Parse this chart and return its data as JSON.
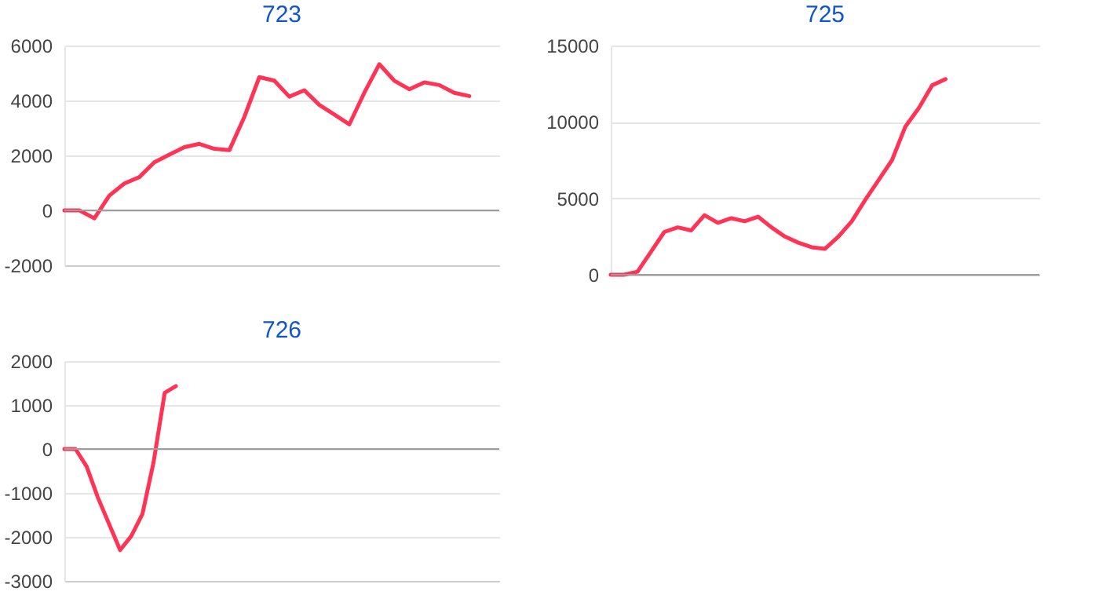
{
  "chart_data": [
    {
      "type": "line",
      "title": "723",
      "categories": [
        null,
        null,
        null,
        null,
        null,
        null,
        null,
        null,
        null,
        null,
        null,
        null,
        null,
        null,
        null,
        null,
        null,
        null,
        null,
        null,
        null,
        null,
        null,
        null,
        null,
        null,
        null,
        null,
        null,
        null
      ],
      "values": [
        0,
        0,
        -290,
        540,
        980,
        1210,
        1750,
        2030,
        2300,
        2420,
        2240,
        2190,
        3400,
        4850,
        4720,
        4140,
        4370,
        3840,
        3490,
        3130,
        4280,
        5320,
        4720,
        4410,
        4660,
        4560,
        4280,
        4160,
        null,
        null
      ],
      "color": "#ff3355",
      "ylim": [
        -2000,
        6000
      ],
      "yticks": [
        -2000,
        0,
        2000,
        4000,
        6000
      ],
      "grid": "y",
      "tick_labels": "y",
      "ref_lines": [
        {
          "axis": "y",
          "value": 0,
          "color": "#9e9e9e"
        }
      ]
    },
    {
      "type": "line",
      "title": "725",
      "categories": [
        null,
        null,
        null,
        null,
        null,
        null,
        null,
        null,
        null,
        null,
        null,
        null,
        null,
        null,
        null,
        null,
        null,
        null,
        null,
        null,
        null,
        null,
        null,
        null,
        null,
        null,
        null,
        null,
        null,
        null,
        null,
        null,
        null
      ],
      "values": [
        0,
        0,
        200,
        1500,
        2800,
        3100,
        2900,
        3900,
        3400,
        3700,
        3500,
        3800,
        3100,
        2500,
        2100,
        1800,
        1700,
        2500,
        3500,
        4900,
        6200,
        7500,
        9700,
        10900,
        12400,
        12800,
        null,
        null,
        null,
        null,
        null,
        null,
        null
      ],
      "color": "#ff3355",
      "ylim": [
        0,
        15000
      ],
      "yticks": [
        0,
        5000,
        10000,
        15000
      ],
      "grid": "y",
      "tick_labels": "y",
      "ref_lines": [
        {
          "axis": "y",
          "value": 0,
          "color": "#9e9e9e"
        }
      ]
    },
    {
      "type": "line",
      "title": "726",
      "categories": [
        null,
        null,
        null,
        null,
        null,
        null,
        null,
        null,
        null,
        null,
        null,
        null,
        null,
        null,
        null,
        null,
        null,
        null,
        null,
        null,
        null,
        null,
        null,
        null,
        null,
        null,
        null,
        null,
        null,
        null,
        null,
        null,
        null,
        null,
        null,
        null,
        null,
        null,
        null,
        null
      ],
      "values": [
        0,
        0,
        -400,
        -1100,
        -1700,
        -2300,
        -1980,
        -1480,
        -300,
        1280,
        1430,
        null,
        null,
        null,
        null,
        null,
        null,
        null,
        null,
        null,
        null,
        null,
        null,
        null,
        null,
        null,
        null,
        null,
        null,
        null,
        null,
        null,
        null,
        null,
        null,
        null,
        null,
        null,
        null,
        null
      ],
      "color": "#ff3355",
      "ylim": [
        -3000,
        2000
      ],
      "yticks": [
        -3000,
        -2000,
        -1000,
        0,
        1000,
        2000
      ],
      "grid": "y",
      "tick_labels": "y",
      "ref_lines": [
        {
          "axis": "y",
          "value": 0,
          "color": "#9e9e9e"
        }
      ]
    }
  ]
}
